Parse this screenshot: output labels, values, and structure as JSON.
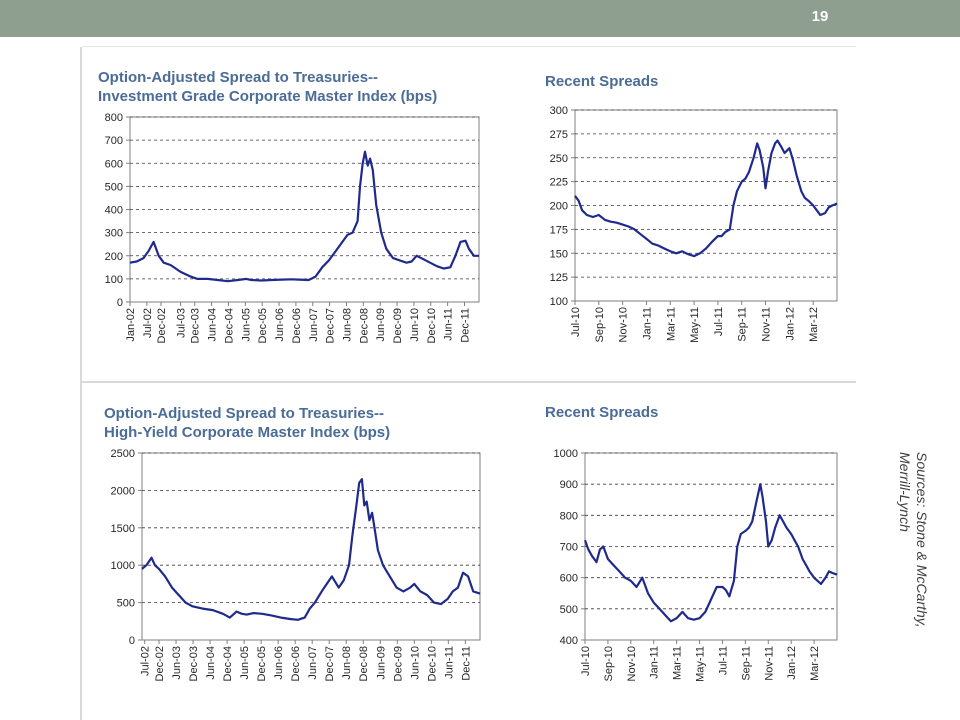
{
  "slide": {
    "number": "19",
    "sources_line1": "Sources: Stone & McCarthy,",
    "sources_line2": "Merrill-Lynch"
  },
  "colors": {
    "topbar": "#8e9e8f",
    "title": "#4a6c97",
    "series": "#1f2a8c"
  },
  "chart_data": [
    {
      "type": "line",
      "title": "Option-Adjusted Spread to Treasuries--",
      "subtitle": "Investment Grade Corporate Master Index (bps)",
      "ylim": [
        0,
        800
      ],
      "yticks": [
        0,
        100,
        200,
        300,
        400,
        500,
        600,
        700,
        800
      ],
      "xlim": [
        2002.0,
        2012.35
      ],
      "xtick_labels": [
        "Jan-02",
        "Jul-02",
        "Dec-02",
        "Jul-03",
        "Dec-03",
        "Jun-04",
        "Dec-04",
        "Jun-05",
        "Dec-05",
        "Jun-06",
        "Dec-06",
        "Jun-07",
        "Dec-07",
        "Jun-08",
        "Dec-08",
        "Jun-09",
        "Dec-09",
        "Jun-10",
        "Dec-10",
        "Jun-11",
        "Dec-11"
      ],
      "xtick_values": [
        2002.0,
        2002.5,
        2002.92,
        2003.5,
        2003.92,
        2004.42,
        2004.92,
        2005.42,
        2005.92,
        2006.42,
        2006.92,
        2007.42,
        2007.92,
        2008.42,
        2008.92,
        2009.42,
        2009.92,
        2010.42,
        2010.92,
        2011.42,
        2011.92
      ],
      "grid": "dashed-horizontal",
      "series": [
        {
          "x": [
            2002.0,
            2002.2,
            2002.4,
            2002.55,
            2002.7,
            2002.85,
            2003.0,
            2003.2,
            2003.5,
            2003.8,
            2004.0,
            2004.3,
            2004.6,
            2004.9,
            2005.2,
            2005.45,
            2005.6,
            2005.9,
            2006.2,
            2006.5,
            2006.8,
            2007.0,
            2007.3,
            2007.5,
            2007.7,
            2007.9,
            2008.1,
            2008.3,
            2008.45,
            2008.6,
            2008.75,
            2008.82,
            2008.9,
            2008.97,
            2009.05,
            2009.12,
            2009.2,
            2009.3,
            2009.45,
            2009.6,
            2009.8,
            2010.0,
            2010.2,
            2010.35,
            2010.5,
            2010.7,
            2010.9,
            2011.1,
            2011.3,
            2011.5,
            2011.65,
            2011.8,
            2011.95,
            2012.05,
            2012.2,
            2012.35
          ],
          "values": [
            170,
            175,
            190,
            220,
            260,
            200,
            170,
            160,
            130,
            110,
            100,
            100,
            95,
            90,
            95,
            100,
            95,
            93,
            95,
            97,
            98,
            97,
            95,
            110,
            150,
            180,
            220,
            260,
            290,
            300,
            350,
            500,
            600,
            650,
            590,
            620,
            570,
            420,
            300,
            230,
            190,
            180,
            170,
            175,
            200,
            185,
            170,
            155,
            145,
            150,
            200,
            260,
            265,
            230,
            200,
            200
          ]
        }
      ]
    },
    {
      "type": "line",
      "title": "Recent Spreads",
      "ylim": [
        100,
        300
      ],
      "yticks": [
        100,
        125,
        150,
        175,
        200,
        225,
        250,
        275,
        300
      ],
      "xlim": [
        0,
        22
      ],
      "xtick_labels": [
        "Jul-10",
        "Sep-10",
        "Nov-10",
        "Jan-11",
        "Mar-11",
        "May-11",
        "Jul-11",
        "Sep-11",
        "Nov-11",
        "Jan-12",
        "Mar-12"
      ],
      "xtick_values": [
        0,
        2,
        4,
        6,
        8,
        10,
        12,
        14,
        16,
        18,
        20
      ],
      "grid": "dashed-horizontal",
      "series": [
        {
          "x": [
            0,
            0.3,
            0.6,
            1,
            1.5,
            2,
            2.5,
            3,
            3.5,
            4,
            4.5,
            5,
            5.5,
            6,
            6.5,
            7,
            7.5,
            8,
            8.5,
            9,
            9.5,
            10,
            10.5,
            11,
            11.5,
            12,
            12.3,
            12.6,
            13,
            13.3,
            13.6,
            14,
            14.3,
            14.6,
            15,
            15.3,
            15.5,
            15.8,
            16,
            16.2,
            16.5,
            16.8,
            17,
            17.3,
            17.6,
            18,
            18.3,
            18.6,
            19,
            19.3,
            19.6,
            20,
            20.3,
            20.6,
            21,
            21.3,
            21.6,
            22
          ],
          "values": [
            210,
            205,
            195,
            190,
            188,
            190,
            185,
            183,
            182,
            180,
            178,
            175,
            170,
            165,
            160,
            158,
            155,
            152,
            150,
            152,
            149,
            147,
            150,
            155,
            162,
            168,
            168,
            172,
            175,
            200,
            215,
            225,
            228,
            235,
            250,
            265,
            258,
            240,
            218,
            235,
            255,
            265,
            268,
            262,
            255,
            260,
            248,
            232,
            215,
            208,
            205,
            200,
            195,
            190,
            192,
            198,
            200,
            202
          ]
        }
      ]
    },
    {
      "type": "line",
      "title": "Option-Adjusted Spread to Treasuries--",
      "subtitle": "High-Yield Corporate Master Index (bps)",
      "ylim": [
        0,
        2500
      ],
      "yticks": [
        0,
        500,
        1000,
        1500,
        2000,
        2500
      ],
      "xlim": [
        2002.42,
        2012.35
      ],
      "xtick_labels": [
        "Jul-02",
        "Dec-02",
        "Jun-03",
        "Dec-03",
        "Jun-04",
        "Dec-04",
        "Jun-05",
        "Dec-05",
        "Jun-06",
        "Dec-06",
        "Jun-07",
        "Dec-07",
        "Jun-08",
        "Dec-08",
        "Jun-09",
        "Dec-09",
        "Jun-10",
        "Dec-10",
        "Jun-11",
        "Dec-11"
      ],
      "xtick_values": [
        2002.5,
        2002.92,
        2003.42,
        2003.92,
        2004.42,
        2004.92,
        2005.42,
        2005.92,
        2006.42,
        2006.92,
        2007.42,
        2007.92,
        2008.42,
        2008.92,
        2009.42,
        2009.92,
        2010.42,
        2010.92,
        2011.42,
        2011.92
      ],
      "grid": "dashed-horizontal",
      "series": [
        {
          "x": [
            2002.42,
            2002.55,
            2002.7,
            2002.8,
            2002.92,
            2003.1,
            2003.3,
            2003.5,
            2003.7,
            2003.9,
            2004.2,
            2004.5,
            2004.8,
            2005.0,
            2005.2,
            2005.35,
            2005.5,
            2005.7,
            2005.95,
            2006.2,
            2006.5,
            2006.8,
            2007.0,
            2007.2,
            2007.35,
            2007.5,
            2007.7,
            2007.85,
            2008.0,
            2008.2,
            2008.35,
            2008.5,
            2008.6,
            2008.72,
            2008.8,
            2008.88,
            2008.95,
            2009.02,
            2009.1,
            2009.18,
            2009.25,
            2009.35,
            2009.5,
            2009.7,
            2009.9,
            2010.1,
            2010.3,
            2010.42,
            2010.6,
            2010.8,
            2011.0,
            2011.2,
            2011.4,
            2011.55,
            2011.7,
            2011.85,
            2012.0,
            2012.15,
            2012.35
          ],
          "values": [
            950,
            1000,
            1100,
            1000,
            950,
            850,
            700,
            600,
            500,
            450,
            420,
            400,
            350,
            300,
            380,
            350,
            340,
            360,
            350,
            330,
            300,
            280,
            270,
            300,
            420,
            500,
            650,
            750,
            850,
            700,
            800,
            1000,
            1400,
            1800,
            2100,
            2150,
            1800,
            1850,
            1600,
            1700,
            1500,
            1200,
            1000,
            850,
            700,
            650,
            700,
            750,
            650,
            600,
            500,
            480,
            550,
            650,
            700,
            900,
            850,
            650,
            620
          ]
        }
      ]
    },
    {
      "type": "line",
      "title": "Recent Spreads",
      "ylim": [
        400,
        1000
      ],
      "yticks": [
        400,
        500,
        600,
        700,
        800,
        900,
        1000
      ],
      "xlim": [
        0,
        22
      ],
      "xtick_labels": [
        "Jul-10",
        "Sep-10",
        "Nov-10",
        "Jan-11",
        "Mar-11",
        "May-11",
        "Jul-11",
        "Sep-11",
        "Nov-11",
        "Jan-12",
        "Mar-12"
      ],
      "xtick_values": [
        0,
        2,
        4,
        6,
        8,
        10,
        12,
        14,
        16,
        18,
        20
      ],
      "grid": "dashed-horizontal",
      "series": [
        {
          "x": [
            0,
            0.3,
            0.6,
            1,
            1.3,
            1.6,
            2,
            2.5,
            3,
            3.5,
            4,
            4.5,
            5,
            5.5,
            6,
            6.5,
            7,
            7.5,
            8,
            8.5,
            9,
            9.5,
            10,
            10.5,
            11,
            11.5,
            12,
            12.3,
            12.6,
            13,
            13.3,
            13.6,
            14,
            14.3,
            14.6,
            15,
            15.3,
            15.5,
            15.8,
            16,
            16.3,
            16.6,
            17,
            17.3,
            17.6,
            18,
            18.3,
            18.6,
            19,
            19.3,
            19.6,
            20,
            20.3,
            20.6,
            21,
            21.3,
            21.6,
            22
          ],
          "values": [
            720,
            690,
            670,
            650,
            690,
            700,
            660,
            640,
            620,
            600,
            590,
            570,
            600,
            550,
            520,
            500,
            480,
            460,
            470,
            490,
            470,
            465,
            470,
            490,
            530,
            570,
            570,
            560,
            540,
            590,
            700,
            740,
            750,
            760,
            780,
            850,
            900,
            860,
            780,
            700,
            720,
            760,
            800,
            780,
            760,
            740,
            720,
            700,
            660,
            640,
            620,
            600,
            590,
            580,
            600,
            620,
            615,
            610
          ]
        }
      ]
    }
  ]
}
